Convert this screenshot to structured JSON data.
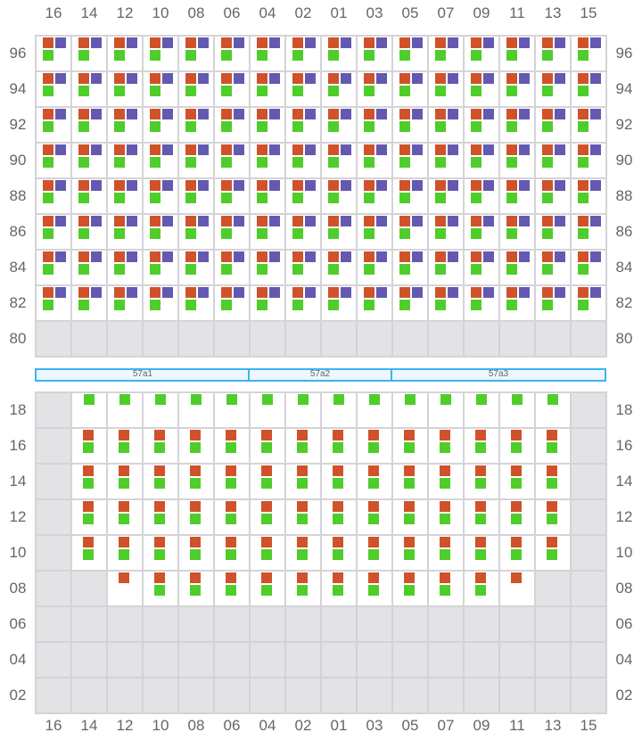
{
  "columns": [
    "16",
    "14",
    "12",
    "10",
    "08",
    "06",
    "04",
    "02",
    "01",
    "03",
    "05",
    "07",
    "09",
    "11",
    "13",
    "15"
  ],
  "colors": {
    "orange": "#d0522a",
    "purple": "#6459b0",
    "green": "#4fcd2a",
    "unavailable": "#e3e3e6"
  },
  "top_section": {
    "rows": [
      "96",
      "94",
      "92",
      "90",
      "88",
      "86",
      "84",
      "82",
      "80"
    ],
    "cells": [
      [
        "opg",
        "opg",
        "opg",
        "opg",
        "opg",
        "opg",
        "opg",
        "opg",
        "opg",
        "opg",
        "opg",
        "opg",
        "opg",
        "opg",
        "opg",
        "opg"
      ],
      [
        "opg",
        "opg",
        "opg",
        "opg",
        "opg",
        "opg",
        "opg",
        "opg",
        "opg",
        "opg",
        "opg",
        "opg",
        "opg",
        "opg",
        "opg",
        "opg"
      ],
      [
        "opg",
        "opg",
        "opg",
        "opg",
        "opg",
        "opg",
        "opg",
        "opg",
        "opg",
        "opg",
        "opg",
        "opg",
        "opg",
        "opg",
        "opg",
        "opg"
      ],
      [
        "opg",
        "opg",
        "opg",
        "opg",
        "opg",
        "opg",
        "opg",
        "opg",
        "opg",
        "opg",
        "opg",
        "opg",
        "opg",
        "opg",
        "opg",
        "opg"
      ],
      [
        "opg",
        "opg",
        "opg",
        "opg",
        "opg",
        "opg",
        "opg",
        "opg",
        "opg",
        "opg",
        "opg",
        "opg",
        "opg",
        "opg",
        "opg",
        "opg"
      ],
      [
        "opg",
        "opg",
        "opg",
        "opg",
        "opg",
        "opg",
        "opg",
        "opg",
        "opg",
        "opg",
        "opg",
        "opg",
        "opg",
        "opg",
        "opg",
        "opg"
      ],
      [
        "opg",
        "opg",
        "opg",
        "opg",
        "opg",
        "opg",
        "opg",
        "opg",
        "opg",
        "opg",
        "opg",
        "opg",
        "opg",
        "opg",
        "opg",
        "opg"
      ],
      [
        "opg",
        "opg",
        "opg",
        "opg",
        "opg",
        "opg",
        "opg",
        "opg",
        "opg",
        "opg",
        "opg",
        "opg",
        "opg",
        "opg",
        "opg",
        "opg"
      ],
      [
        "x",
        "x",
        "x",
        "x",
        "x",
        "x",
        "x",
        "x",
        "x",
        "x",
        "x",
        "x",
        "x",
        "x",
        "x",
        "x"
      ]
    ]
  },
  "sections": [
    {
      "label": "57a1",
      "span": 6
    },
    {
      "label": "57a2",
      "span": 4
    },
    {
      "label": "57a3",
      "span": 6
    }
  ],
  "bottom_section": {
    "rows": [
      "18",
      "16",
      "14",
      "12",
      "10",
      "08",
      "06",
      "04",
      "02"
    ],
    "cells": [
      [
        "x",
        "g",
        "g",
        "g",
        "g",
        "g",
        "g",
        "g",
        "g",
        "g",
        "g",
        "g",
        "g",
        "g",
        "g",
        "x"
      ],
      [
        "x",
        "og",
        "og",
        "og",
        "og",
        "og",
        "og",
        "og",
        "og",
        "og",
        "og",
        "og",
        "og",
        "og",
        "og",
        "x"
      ],
      [
        "x",
        "og",
        "og",
        "og",
        "og",
        "og",
        "og",
        "og",
        "og",
        "og",
        "og",
        "og",
        "og",
        "og",
        "og",
        "x"
      ],
      [
        "x",
        "og",
        "og",
        "og",
        "og",
        "og",
        "og",
        "og",
        "og",
        "og",
        "og",
        "og",
        "og",
        "og",
        "og",
        "x"
      ],
      [
        "x",
        "og",
        "og",
        "og",
        "og",
        "og",
        "og",
        "og",
        "og",
        "og",
        "og",
        "og",
        "og",
        "og",
        "og",
        "x"
      ],
      [
        "x",
        "x",
        "o",
        "og",
        "og",
        "og",
        "og",
        "og",
        "og",
        "og",
        "og",
        "og",
        "og",
        "o",
        "x",
        "x"
      ],
      [
        "x",
        "x",
        "x",
        "x",
        "x",
        "x",
        "x",
        "x",
        "x",
        "x",
        "x",
        "x",
        "x",
        "x",
        "x",
        "x"
      ],
      [
        "x",
        "x",
        "x",
        "x",
        "x",
        "x",
        "x",
        "x",
        "x",
        "x",
        "x",
        "x",
        "x",
        "x",
        "x",
        "x"
      ],
      [
        "x",
        "x",
        "x",
        "x",
        "x",
        "x",
        "x",
        "x",
        "x",
        "x",
        "x",
        "x",
        "x",
        "x",
        "x",
        "x"
      ]
    ]
  }
}
